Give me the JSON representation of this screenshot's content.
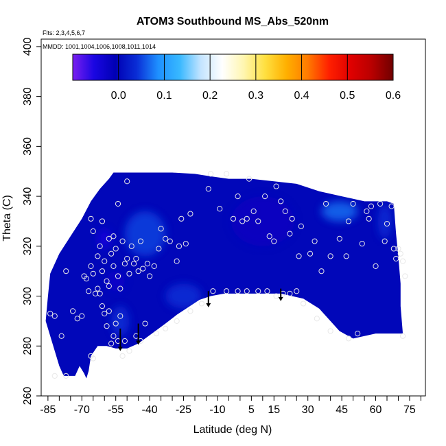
{
  "chart_data": {
    "type": "heatmap",
    "title": "ATOM3 Southbound MS_Abs_520nm",
    "subtitle_flights": "Flts: 2,3,4,5,6,7",
    "subtitle_dates": "MMDD: 1001,1004,1006,1008,1011,1014",
    "xlabel": "Latitude (deg N)",
    "ylabel": "Theta (C)",
    "xlim": [
      -88,
      82
    ],
    "ylim": [
      260,
      403
    ],
    "x_ticks": [
      -85,
      -70,
      -55,
      -40,
      -25,
      -10,
      5,
      15,
      30,
      45,
      60,
      75
    ],
    "x_tick_labels": [
      "-85",
      "-70",
      "-55",
      "-40",
      "-25",
      "-10",
      "5",
      "15",
      "30",
      "45",
      "60",
      "75"
    ],
    "x_minor_step": 5,
    "y_ticks": [
      260,
      280,
      300,
      320,
      340,
      360,
      380,
      400
    ],
    "y_tick_labels": [
      "260",
      "280",
      "300",
      "320",
      "340",
      "360",
      "380",
      "400"
    ],
    "colorbar": {
      "range": [
        -0.1,
        0.6
      ],
      "ticks": [
        0.0,
        0.1,
        0.2,
        0.3,
        0.4,
        0.5,
        0.6
      ],
      "tick_labels": [
        "0.0",
        "0.1",
        "0.2",
        "0.3",
        "0.4",
        "0.5",
        "0.6"
      ],
      "colors": [
        "#7a1ff0",
        "#1a06e2",
        "#0000b4",
        "#0a2ed6",
        "#1e90ff",
        "#38b8ff",
        "#c4e4ff",
        "#ffffff",
        "#fff6b0",
        "#ffe040",
        "#ffb000",
        "#ff7a00",
        "#ff2000",
        "#e00000",
        "#b80000",
        "#700000"
      ]
    },
    "field_value_typical": 0.0,
    "field_value_range": [
      -0.05,
      0.1
    ],
    "domain_outline": [
      [
        -84,
        309
      ],
      [
        -80,
        317
      ],
      [
        -75,
        324
      ],
      [
        -70,
        331
      ],
      [
        -66,
        338
      ],
      [
        -62,
        343
      ],
      [
        -58,
        347
      ],
      [
        -56,
        349.5
      ],
      [
        -40,
        349.5
      ],
      [
        -30,
        349.5
      ],
      [
        -20,
        349
      ],
      [
        -13,
        348
      ],
      [
        -5,
        347
      ],
      [
        5,
        347
      ],
      [
        15,
        346
      ],
      [
        25,
        345
      ],
      [
        35,
        342
      ],
      [
        45,
        340
      ],
      [
        55,
        338
      ],
      [
        60,
        338
      ],
      [
        65,
        338
      ],
      [
        68,
        337
      ],
      [
        69,
        325
      ],
      [
        70,
        316
      ],
      [
        71,
        305
      ],
      [
        71,
        296
      ],
      [
        72,
        285
      ],
      [
        60,
        285
      ],
      [
        50,
        283
      ],
      [
        44,
        286
      ],
      [
        35,
        295
      ],
      [
        28,
        299
      ],
      [
        18,
        301
      ],
      [
        8,
        301
      ],
      [
        -1,
        301
      ],
      [
        -7,
        301
      ],
      [
        -13,
        300
      ],
      [
        -18,
        298.5
      ],
      [
        -23,
        295.5
      ],
      [
        -28,
        292.5
      ],
      [
        -33,
        289
      ],
      [
        -39,
        285
      ],
      [
        -45,
        281
      ],
      [
        -50,
        279
      ],
      [
        -55,
        279
      ],
      [
        -59,
        280
      ],
      [
        -63,
        280
      ],
      [
        -66,
        276
      ],
      [
        -67,
        270
      ],
      [
        -68,
        267
      ],
      [
        -69,
        269
      ],
      [
        -71,
        272
      ],
      [
        -73,
        268
      ],
      [
        -78,
        268
      ],
      [
        -80,
        272
      ],
      [
        -83,
        281
      ],
      [
        -86,
        290
      ],
      [
        -85,
        300
      ]
    ],
    "bright_patches": [
      {
        "x": -42,
        "y": 325,
        "rx": 9,
        "ry": 9,
        "value": 0.05
      },
      {
        "x": -25,
        "y": 300,
        "rx": 8,
        "ry": 5,
        "value": 0.04
      },
      {
        "x": 44,
        "y": 334,
        "rx": 8,
        "ry": 4,
        "value": 0.07
      },
      {
        "x": 64,
        "y": 330,
        "rx": 3,
        "ry": 7,
        "value": 0.04
      },
      {
        "x": -53,
        "y": 290,
        "rx": 4,
        "ry": 6,
        "value": 0.04
      }
    ],
    "dark_patches": [
      {
        "x": -60,
        "y": 323,
        "rx": 3,
        "ry": 4,
        "value": -0.05
      },
      {
        "x": -55,
        "y": 306,
        "rx": 4,
        "ry": 4,
        "value": -0.03
      },
      {
        "x": 10,
        "y": 330,
        "rx": 14,
        "ry": 10,
        "value": -0.02
      }
    ],
    "observation_points": [
      [
        -84,
        293
      ],
      [
        -82,
        292
      ],
      [
        -79,
        284
      ],
      [
        -77,
        310
      ],
      [
        -74,
        294
      ],
      [
        -72,
        291
      ],
      [
        -70,
        292
      ],
      [
        -69,
        308
      ],
      [
        -68,
        307
      ],
      [
        -67,
        302
      ],
      [
        -66,
        276
      ],
      [
        -65,
        275
      ],
      [
        -64,
        301
      ],
      [
        -63,
        303
      ],
      [
        -62,
        301
      ],
      [
        -61,
        296
      ],
      [
        -60,
        293
      ],
      [
        -59,
        288
      ],
      [
        -58,
        294
      ],
      [
        -57,
        281
      ],
      [
        -56,
        284
      ],
      [
        -55,
        289
      ],
      [
        -54,
        282
      ],
      [
        -53,
        292
      ],
      [
        -52,
        276
      ],
      [
        -51,
        282
      ],
      [
        -49,
        278
      ],
      [
        -46,
        284
      ],
      [
        -44,
        282
      ],
      [
        -42,
        289
      ],
      [
        -66,
        312
      ],
      [
        -65,
        309
      ],
      [
        -63,
        316
      ],
      [
        -62,
        320
      ],
      [
        -61,
        310
      ],
      [
        -60,
        314
      ],
      [
        -59,
        306
      ],
      [
        -58,
        304
      ],
      [
        -57,
        317
      ],
      [
        -56,
        312
      ],
      [
        -55,
        319
      ],
      [
        -54,
        308
      ],
      [
        -53,
        303
      ],
      [
        -52,
        322
      ],
      [
        -51,
        313
      ],
      [
        -50,
        315
      ],
      [
        -49,
        309
      ],
      [
        -48,
        320
      ],
      [
        -47,
        313
      ],
      [
        -46,
        315
      ],
      [
        -45,
        310
      ],
      [
        -44,
        322
      ],
      [
        -43,
        311
      ],
      [
        -41,
        313
      ],
      [
        -40,
        308
      ],
      [
        -38,
        312
      ],
      [
        -36,
        319
      ],
      [
        -35,
        327
      ],
      [
        -33,
        323
      ],
      [
        -31,
        322
      ],
      [
        -28,
        314
      ],
      [
        -27,
        320
      ],
      [
        -24,
        321
      ],
      [
        -66,
        331
      ],
      [
        -65,
        326
      ],
      [
        -61,
        330
      ],
      [
        -58,
        323
      ],
      [
        -56,
        324
      ],
      [
        -54,
        337
      ],
      [
        -50,
        346
      ],
      [
        -26,
        331
      ],
      [
        -22,
        333
      ],
      [
        -14,
        343
      ],
      [
        -13,
        349
      ],
      [
        -9,
        335
      ],
      [
        -6,
        349
      ],
      [
        -3,
        331
      ],
      [
        -1,
        340
      ],
      [
        1,
        330
      ],
      [
        3,
        331
      ],
      [
        4,
        347
      ],
      [
        6,
        334
      ],
      [
        8,
        330
      ],
      [
        11,
        340
      ],
      [
        13,
        324
      ],
      [
        15,
        322
      ],
      [
        16,
        344
      ],
      [
        18,
        338
      ],
      [
        20,
        334
      ],
      [
        22,
        325
      ],
      [
        23,
        331
      ],
      [
        26,
        316
      ],
      [
        27,
        328
      ],
      [
        31,
        317
      ],
      [
        33,
        322
      ],
      [
        36,
        310
      ],
      [
        38,
        337
      ],
      [
        40,
        316
      ],
      [
        44,
        323
      ],
      [
        47,
        316
      ],
      [
        48,
        330
      ],
      [
        50,
        337
      ],
      [
        54,
        321
      ],
      [
        56,
        334
      ],
      [
        57,
        331
      ],
      [
        58,
        336
      ],
      [
        60,
        312
      ],
      [
        62,
        337
      ],
      [
        64,
        322
      ],
      [
        65,
        329
      ],
      [
        67,
        336
      ],
      [
        68,
        319
      ],
      [
        69,
        315
      ],
      [
        70,
        319
      ],
      [
        71,
        317
      ],
      [
        72,
        314
      ],
      [
        73,
        308
      ],
      [
        28,
        297
      ],
      [
        25,
        302
      ],
      [
        22,
        301
      ],
      [
        19,
        301
      ],
      [
        16,
        300
      ],
      [
        12,
        302
      ],
      [
        8,
        302
      ],
      [
        3,
        302
      ],
      [
        -1,
        302
      ],
      [
        -6,
        302
      ],
      [
        -12,
        302
      ],
      [
        -17,
        297
      ],
      [
        -22,
        294
      ],
      [
        -28,
        290
      ],
      [
        -33,
        287
      ],
      [
        -37,
        285
      ],
      [
        34,
        291
      ],
      [
        40,
        286
      ],
      [
        48,
        283
      ],
      [
        52,
        285
      ],
      [
        72,
        284
      ],
      [
        -82,
        268
      ],
      [
        -77,
        268
      ]
    ],
    "arrows": [
      {
        "x": -53,
        "y_top": 287,
        "y_tip": 278
      },
      {
        "x": -45,
        "y_top": 289,
        "y_tip": 280.5
      },
      {
        "x": -14,
        "y_top": 302,
        "y_tip": 295.5
      },
      {
        "x": 18,
        "y_top": 303,
        "y_tip": 298
      }
    ],
    "grid": false,
    "legend": "colorbar at top inside plot"
  }
}
